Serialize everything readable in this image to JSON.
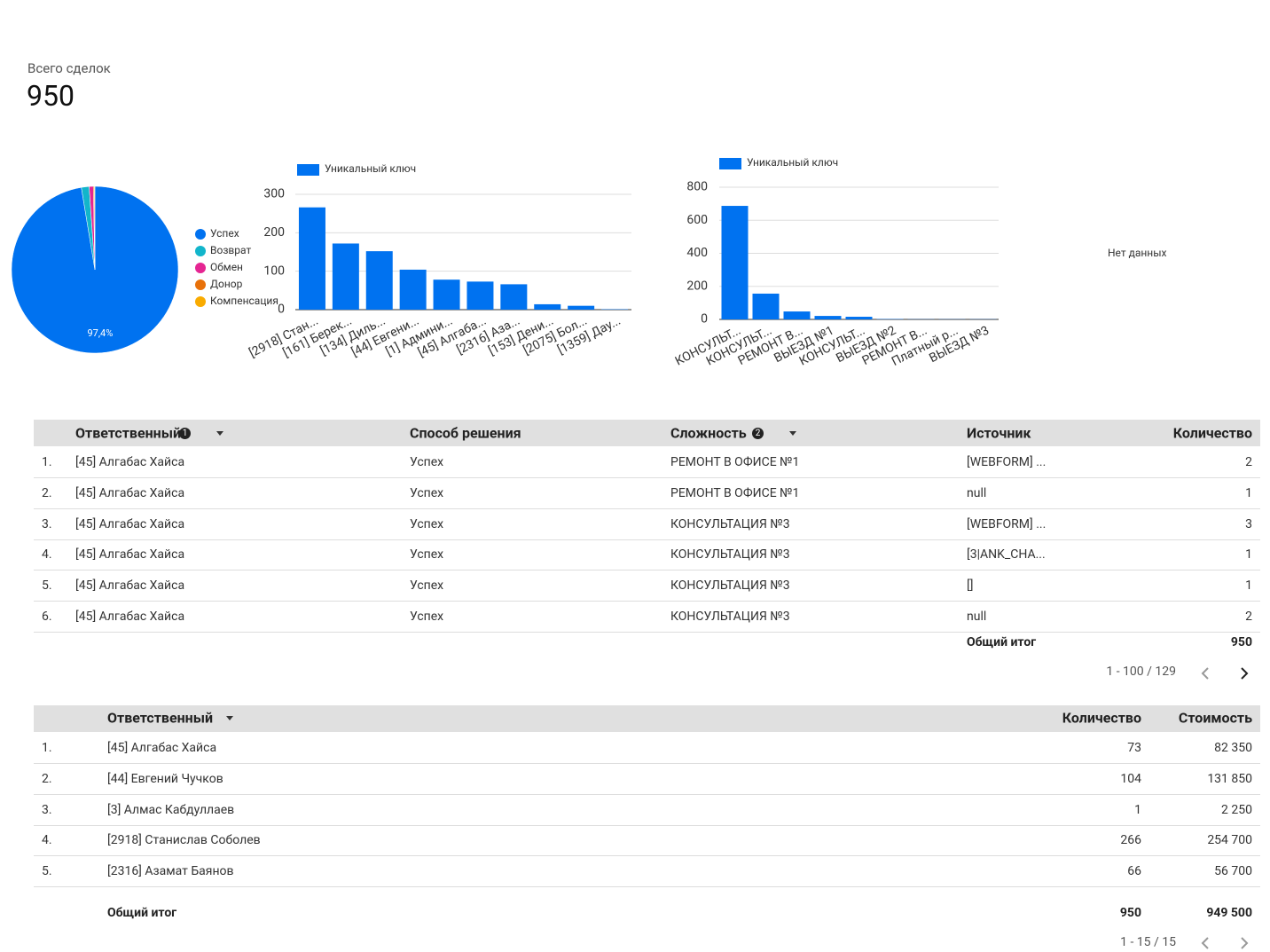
{
  "scorecard": {
    "label": "Всего сделок",
    "value": 950
  },
  "chart_data": [
    {
      "type": "pie",
      "categories": [
        "Успех",
        "Возврат",
        "Обмен",
        "Донор",
        "Компенсация"
      ],
      "values": [
        97.4,
        1.5,
        0.8,
        0.2,
        0.1
      ],
      "value_labels": [
        "97,4%",
        null,
        null,
        null,
        null
      ],
      "colors": [
        "#0072f0",
        "#12b5cb",
        "#e52592",
        "#e8710a",
        "#f9ab00"
      ],
      "legend": "right"
    },
    {
      "type": "bar",
      "categories": [
        "[2918] Стан...",
        "[161] Берек...",
        "[134] Диль...",
        "[44] Евгени...",
        "[1] Админи...",
        "[45] Алгаба...",
        "[2316] Аза...",
        "[153] Дени...",
        "[2075] Бол...",
        "[1359] Дау..."
      ],
      "series": [
        {
          "name": "Уникальный ключ",
          "color": "#0072f0",
          "values": [
            266,
            172,
            152,
            104,
            78,
            73,
            66,
            14,
            10,
            1
          ]
        }
      ],
      "ylim": [
        0,
        300
      ],
      "yticks": [
        0,
        100,
        200,
        300
      ],
      "grid": true,
      "legend": "top"
    },
    {
      "type": "bar",
      "categories": [
        "КОНСУЛЬТ...",
        "КОНСУЛЬТ...",
        "РЕМОНТ В...",
        "ВЫЕЗД №1",
        "КОНСУЛЬТ...",
        "ВЫЕЗД №2",
        "РЕМОНТ В...",
        "Платный р...",
        "ВЫЕЗД №3"
      ],
      "series": [
        {
          "name": "Уникальный ключ",
          "color": "#0072f0",
          "values": [
            687,
            156,
            48,
            21,
            16,
            2,
            1,
            1,
            1
          ]
        }
      ],
      "ylim": [
        0,
        800
      ],
      "yticks": [
        0,
        200,
        400,
        600,
        800
      ],
      "grid": true,
      "legend": "top"
    }
  ],
  "no_data": "Нет данных",
  "table1": {
    "columns": [
      "Ответственный",
      "Способ решения",
      "Сложность",
      "Источник",
      "Количество"
    ],
    "badges": [
      "1",
      "2"
    ],
    "rows": [
      [
        "1.",
        "[45] Алгабас Хайса",
        "Успех",
        "РЕМОНТ В ОФИСЕ №1",
        "[WEBFORM] ...",
        "2"
      ],
      [
        "2.",
        "[45] Алгабас Хайса",
        "Успех",
        "РЕМОНТ В ОФИСЕ №1",
        "null",
        "1"
      ],
      [
        "3.",
        "[45] Алгабас Хайса",
        "Успех",
        "КОНСУЛЬТАЦИЯ №3",
        "[WEBFORM] ...",
        "3"
      ],
      [
        "4.",
        "[45] Алгабас Хайса",
        "Успех",
        "КОНСУЛЬТАЦИЯ №3",
        "[3|ANK_CHA...",
        "1"
      ],
      [
        "5.",
        "[45] Алгабас Хайса",
        "Успех",
        "КОНСУЛЬТАЦИЯ №3",
        "[]",
        "1"
      ],
      [
        "6.",
        "[45] Алгабас Хайса",
        "Успех",
        "КОНСУЛЬТАЦИЯ №3",
        "null",
        "2"
      ]
    ],
    "total_label": "Общий итог",
    "total": "950",
    "pagination": "1 - 100 / 129"
  },
  "table2": {
    "columns": [
      "Ответственный",
      "Количество",
      "Стоимость"
    ],
    "rows": [
      [
        "1.",
        "[45] Алгабас Хайса",
        "73",
        "82 350"
      ],
      [
        "2.",
        "[44] Евгений Чучков",
        "104",
        "131 850"
      ],
      [
        "3.",
        "[3] Алмас Кабдуллаев",
        "1",
        "2 250"
      ],
      [
        "4.",
        "[2918] Станислав Соболев",
        "266",
        "254 700"
      ],
      [
        "5.",
        "[2316] Азамат Баянов",
        "66",
        "56 700"
      ]
    ],
    "total_label": "Общий итог",
    "totals": [
      "950",
      "949 500"
    ],
    "pagination": "1 - 15 / 15"
  }
}
